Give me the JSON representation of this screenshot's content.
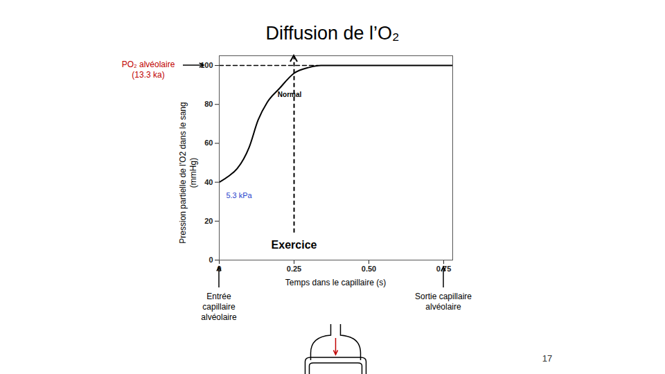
{
  "chart_data": {
    "type": "line",
    "title": "Diffusion de l’O₂",
    "x_label": "Temps dans le capillaire (s)",
    "y_label": "Pression partielle de l'O2 dans le sang\n(mmHg)",
    "x": [
      0,
      0.03,
      0.06,
      0.1,
      0.13,
      0.16,
      0.2,
      0.25,
      0.3,
      0.34,
      0.4,
      0.5,
      0.6,
      0.7,
      0.78
    ],
    "series": [
      {
        "name": "Normal",
        "color": "#000000",
        "line_style": "solid",
        "values": [
          40,
          43,
          47,
          58,
          72,
          81,
          88,
          96,
          99,
          100,
          100,
          100,
          100,
          100,
          100
        ],
        "label_at": [
          0.235,
          85
        ]
      }
    ],
    "xlim": [
      0,
      0.78
    ],
    "xticks": [
      0,
      0.25,
      {
        "value": 0.5,
        "label": "0.50"
      },
      0.75
    ],
    "ylim": [
      0,
      105
    ],
    "yticks": [
      0,
      20,
      40,
      60,
      80,
      100
    ],
    "grid": false,
    "reference_lines": [
      {
        "y": 100,
        "x_from": 0,
        "x_to": 0.33,
        "line_style": "dashed",
        "color": "#000000"
      }
    ],
    "exercise": {
      "text": "Exercice",
      "x": 0.25,
      "y_from": 14,
      "y_to": 105,
      "line_style": "dashed",
      "color": "#000000"
    },
    "annotations": [
      {
        "lines": [
          "PO₂ alvéolaire",
          "(13.3 ka)"
        ],
        "y": 100,
        "color": "#c00000"
      },
      {
        "lines": [
          "Entrée",
          "capillaire",
          "alvéolaire"
        ],
        "x": 0,
        "color": "#000000"
      },
      {
        "lines": [
          "Sortie capillaire",
          "alvéolaire"
        ],
        "x": 0.75,
        "color": "#000000"
      },
      {
        "lines": [
          "5.3 kPa"
        ],
        "x": 0.023,
        "y": 33,
        "color": "#1f3fcc"
      }
    ],
    "page_number": "17"
  }
}
